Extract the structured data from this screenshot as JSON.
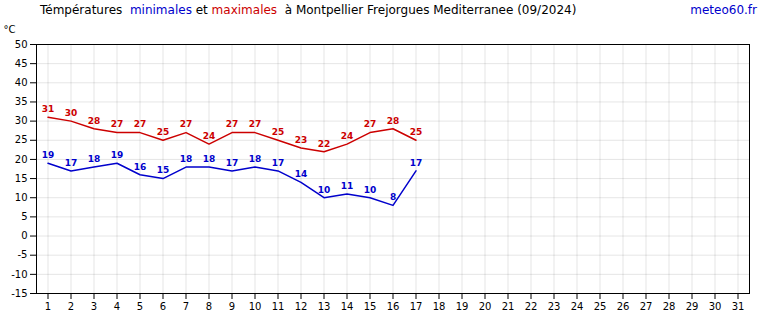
{
  "chart_data": {
    "type": "line",
    "title": "Témpératures  minimales et maximales  à Montpellier Frejorgues Mediterranee (09/2024)",
    "ylabel": "°C",
    "annotations": [
      {
        "text": "meteo60.fr",
        "color": "#0000cc"
      }
    ],
    "x": [
      1,
      2,
      3,
      4,
      5,
      6,
      7,
      8,
      9,
      10,
      11,
      12,
      13,
      14,
      15,
      16,
      17
    ],
    "series": [
      {
        "name": "minimales",
        "color": "#0000cc",
        "values": [
          19,
          17,
          18,
          19,
          16,
          15,
          18,
          18,
          17,
          18,
          17,
          14,
          10,
          11,
          10,
          8,
          17
        ]
      },
      {
        "name": "maximales",
        "color": "#cc0000",
        "values": [
          31,
          30,
          28,
          27,
          27,
          25,
          27,
          24,
          27,
          27,
          25,
          23,
          22,
          24,
          27,
          28,
          25
        ]
      }
    ],
    "xlim": [
      0.5,
      31.5
    ],
    "xticks": [
      1,
      2,
      3,
      4,
      5,
      6,
      7,
      8,
      9,
      10,
      11,
      12,
      13,
      14,
      15,
      16,
      17,
      18,
      19,
      20,
      21,
      22,
      23,
      24,
      25,
      26,
      27,
      28,
      29,
      30,
      31
    ],
    "ylim": [
      -15,
      50
    ],
    "yticks": [
      -15,
      -10,
      -5,
      0,
      5,
      10,
      15,
      20,
      25,
      30,
      35,
      40,
      45,
      50
    ],
    "grid": true,
    "data_labels": true
  }
}
